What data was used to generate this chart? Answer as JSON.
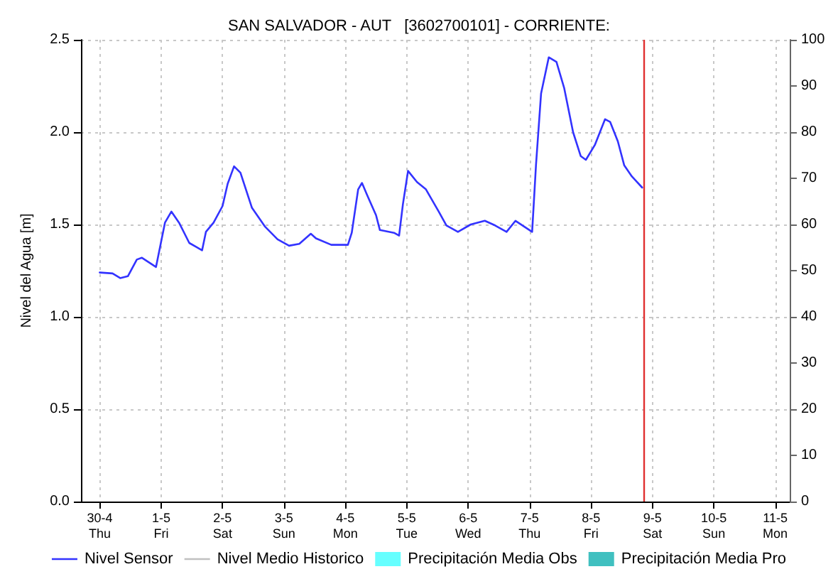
{
  "chart_data": {
    "type": "line",
    "title": "SAN SALVADOR - AUT   [3602700101] - CORRIENTE:",
    "ylabel": "Nivel del Agua [m]",
    "x": [
      "--04-30T00:00",
      "--04-30T05:00",
      "--04-30T08:00",
      "--04-30T11:00",
      "--04-30T14:30",
      "--04-30T16:30",
      "--04-30T22:00",
      "--05-01T01:30",
      "--05-01T04:00",
      "--05-01T07:00",
      "--05-01T11:00",
      "--05-01T13:30",
      "--05-01T16:00",
      "--05-01T17:30",
      "--05-01T20:30",
      "--05-02T00:00",
      "--05-02T02:00",
      "--05-02T04:30",
      "--05-02T07:00",
      "--05-02T11:30",
      "--05-02T16:30",
      "--05-02T21:30",
      "--05-03T02:00",
      "--05-03T06:00",
      "--05-03T10:30",
      "--05-03T12:30",
      "--05-03T18:30",
      "--05-04T01:00",
      "--05-04T02:30",
      "--05-04T05:00",
      "--05-04T06:30",
      "--05-04T08:30",
      "--05-04T12:00",
      "--05-04T13:30",
      "--05-04T19:00",
      "--05-04T21:00",
      "--05-04T22:30",
      "--05-05T00:30",
      "--05-05T04:00",
      "--05-05T07:30",
      "--05-05T12:30",
      "--05-05T15:30",
      "--05-05T20:00",
      "--05-06T01:00",
      "--05-06T06:30",
      "--05-06T10:30",
      "--05-06T15:00",
      "--05-06T18:30",
      "--05-07T01:00",
      "--05-07T02:30",
      "--05-07T04:30",
      "--05-07T07:30",
      "--05-07T10:30",
      "--05-07T13:30",
      "--05-07T17:00",
      "--05-07T20:00",
      "--05-07T22:00",
      "--05-08T01:30",
      "--05-08T05:30",
      "--05-08T07:30",
      "--05-08T10:30",
      "--05-08T13:00",
      "--05-08T16:00",
      "--05-08T20:00"
    ],
    "series": [
      {
        "name": "Nivel Sensor",
        "color": "#3333ff",
        "line_style": "solid",
        "values": [
          1.24,
          1.235,
          1.21,
          1.22,
          1.31,
          1.32,
          1.27,
          1.51,
          1.57,
          1.51,
          1.4,
          1.38,
          1.36,
          1.46,
          1.51,
          1.6,
          1.72,
          1.815,
          1.78,
          1.59,
          1.49,
          1.42,
          1.385,
          1.395,
          1.45,
          1.425,
          1.39,
          1.39,
          1.455,
          1.69,
          1.725,
          1.66,
          1.55,
          1.47,
          1.455,
          1.44,
          1.61,
          1.79,
          1.73,
          1.69,
          1.57,
          1.495,
          1.46,
          1.5,
          1.52,
          1.495,
          1.46,
          1.52,
          1.46,
          1.82,
          2.21,
          2.405,
          2.38,
          2.24,
          2.0,
          1.87,
          1.85,
          1.93,
          2.07,
          2.055,
          1.95,
          1.82,
          1.76,
          1.7
        ]
      },
      {
        "name": "Nivel Medio Historico",
        "type": "line",
        "color": "#c0c0c0",
        "line_style": "dashed",
        "values": [
          null,
          null,
          null,
          null,
          null,
          null,
          null,
          null,
          null,
          null,
          null,
          null,
          null,
          null,
          null,
          null,
          null,
          null,
          null,
          null,
          null,
          null,
          null,
          null,
          null,
          null,
          null,
          null,
          null,
          null,
          null,
          null,
          null,
          null,
          null,
          null,
          null,
          null,
          null,
          null,
          null,
          null,
          null,
          null,
          null,
          null,
          null,
          null,
          null,
          null,
          null,
          null,
          null,
          null,
          null,
          null,
          null,
          null,
          null,
          null,
          null,
          null,
          null,
          null
        ]
      },
      {
        "name": "Precipitación Media Obs",
        "type": "bar",
        "color": "#66ffff",
        "values": [
          null,
          null,
          null,
          null,
          null,
          null,
          null,
          null,
          null,
          null,
          null,
          null,
          null,
          null,
          null,
          null,
          null,
          null,
          null,
          null,
          null,
          null,
          null,
          null,
          null,
          null,
          null,
          null,
          null,
          null,
          null,
          null,
          null,
          null,
          null,
          null,
          null,
          null,
          null,
          null,
          null,
          null,
          null,
          null,
          null,
          null,
          null,
          null,
          null,
          null,
          null,
          null,
          null,
          null,
          null,
          null,
          null,
          null,
          null,
          null,
          null,
          null,
          null,
          null
        ]
      },
      {
        "name": "Precipitación Media Pro",
        "type": "bar",
        "color": "#40c0c0",
        "values": [
          null,
          null,
          null,
          null,
          null,
          null,
          null,
          null,
          null,
          null,
          null,
          null,
          null,
          null,
          null,
          null,
          null,
          null,
          null,
          null,
          null,
          null,
          null,
          null,
          null,
          null,
          null,
          null,
          null,
          null,
          null,
          null,
          null,
          null,
          null,
          null,
          null,
          null,
          null,
          null,
          null,
          null,
          null,
          null,
          null,
          null,
          null,
          null,
          null,
          null,
          null,
          null,
          null,
          null,
          null,
          null,
          null,
          null,
          null,
          null,
          null,
          null,
          null,
          null
        ]
      }
    ],
    "xlim": [
      "--04-29T16:40",
      "--05-11T05:40"
    ],
    "xticks": [
      {
        "value": "--04-30",
        "label": "30-4\nThu"
      },
      {
        "value": "--05-01",
        "label": "1-5\nFri"
      },
      {
        "value": "--05-02",
        "label": "2-5\nSat"
      },
      {
        "value": "--05-03",
        "label": "3-5\nSun"
      },
      {
        "value": "--05-04",
        "label": "4-5\nMon"
      },
      {
        "value": "--05-05",
        "label": "5-5\nTue"
      },
      {
        "value": "--05-06",
        "label": "6-5\nWed"
      },
      {
        "value": "--05-07",
        "label": "7-5\nThu"
      },
      {
        "value": "--05-08",
        "label": "8-5\nFri"
      },
      {
        "value": "--05-09",
        "label": "9-5\nSat"
      },
      {
        "value": "--05-10",
        "label": "10-5\nSun"
      },
      {
        "value": "--05-11",
        "label": "11-5\nMon"
      }
    ],
    "ylim": [
      0,
      2.5
    ],
    "yticks": [
      {
        "value": 0,
        "label": "0.0"
      },
      {
        "value": 0.5,
        "label": "0.5"
      },
      {
        "value": 1,
        "label": "1.0"
      },
      {
        "value": 1.5,
        "label": "1.5"
      },
      {
        "value": 2,
        "label": "2.0"
      },
      {
        "value": 2.5,
        "label": "2.5"
      }
    ],
    "y2lim": [
      0,
      100
    ],
    "y2ticks": [
      0,
      10,
      20,
      30,
      40,
      50,
      60,
      70,
      80,
      90,
      100
    ],
    "ref_lines": [
      {
        "axis": "x",
        "value": "--05-08T20:30",
        "color": "#e03030"
      }
    ],
    "grid": true,
    "legend": "bottom",
    "marker": "none"
  }
}
